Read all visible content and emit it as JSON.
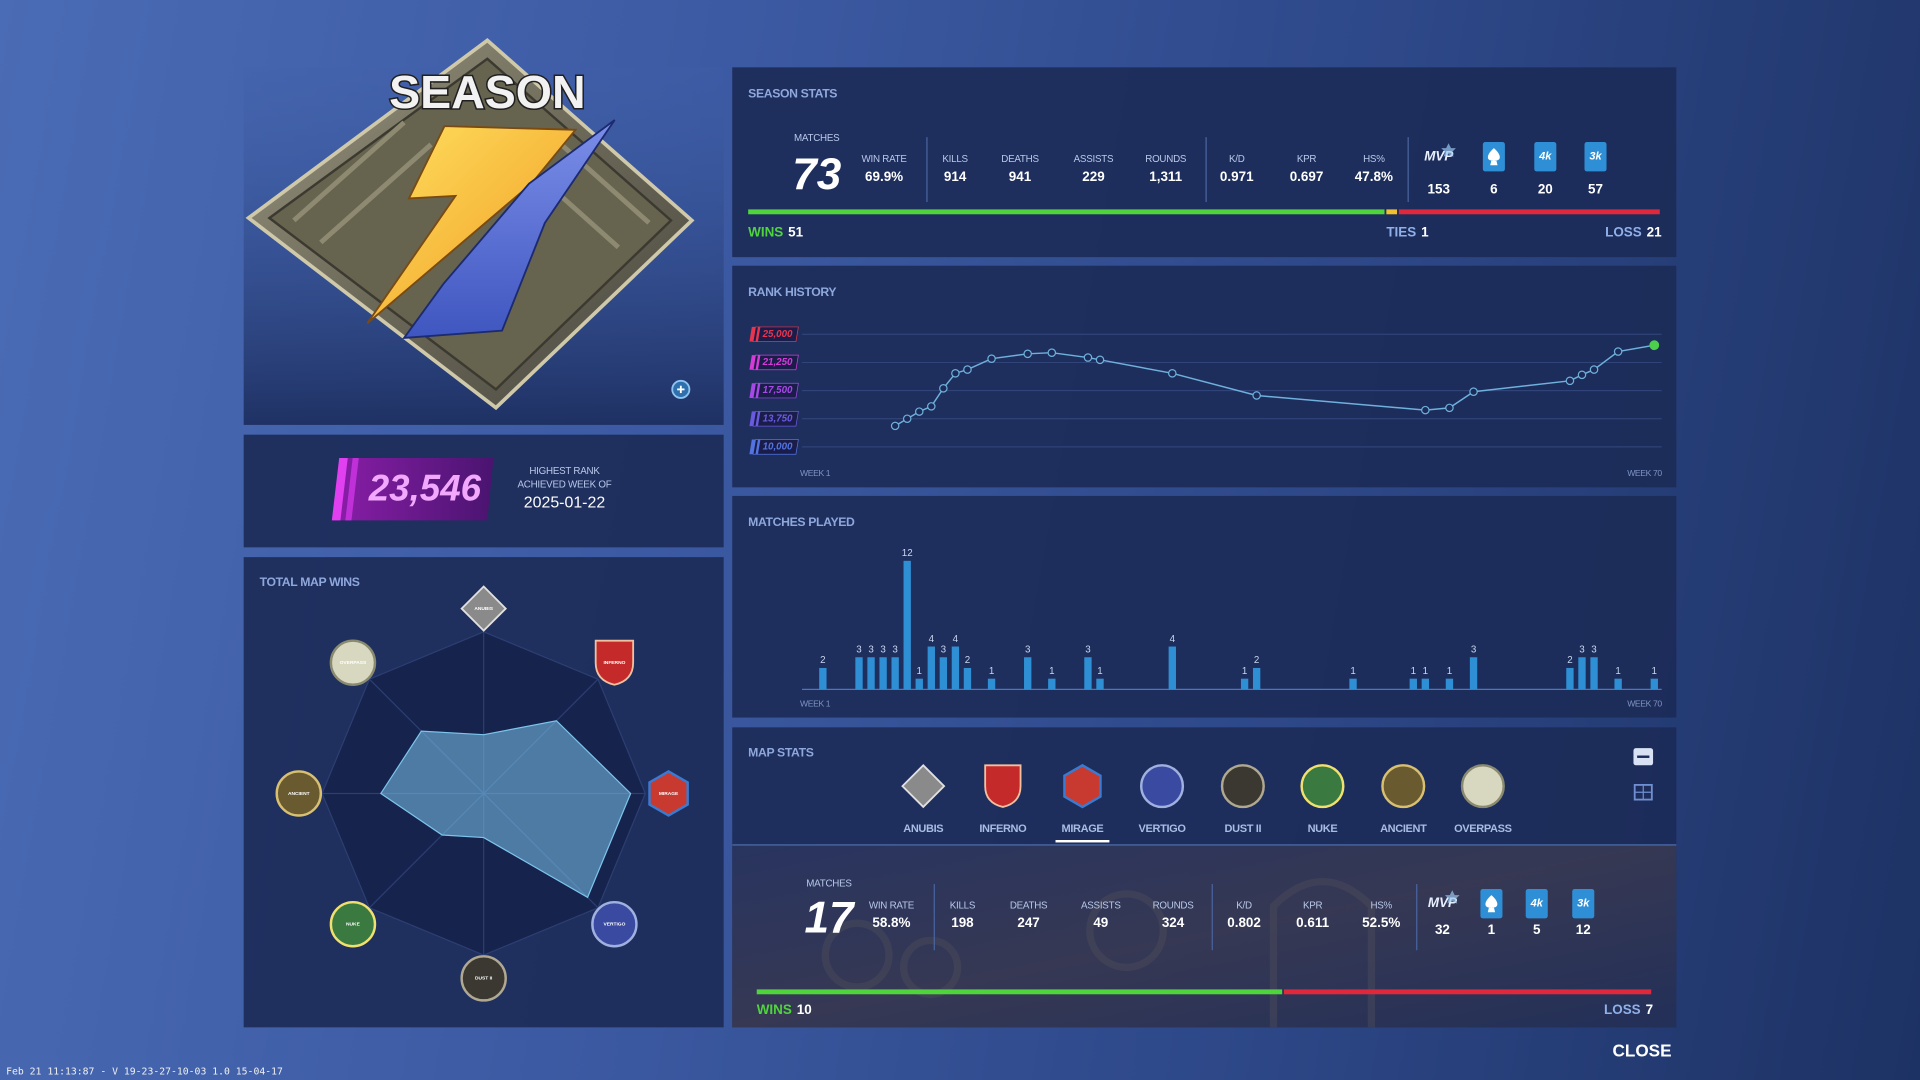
{
  "season_badge": {
    "title": "SEASON"
  },
  "highest_rank": {
    "value": "23,546",
    "caption": [
      "HIGHEST RANK",
      "ACHIEVED WEEK OF"
    ],
    "date": "2025-01-22"
  },
  "season_stats": {
    "title": "SEASON STATS",
    "matches": {
      "label": "MATCHES",
      "value": 73
    },
    "stats": [
      {
        "label": "WIN RATE",
        "value": "69.9%"
      },
      {
        "label": "KILLS",
        "value": "914"
      },
      {
        "label": "DEATHS",
        "value": "941"
      },
      {
        "label": "ASSISTS",
        "value": "229"
      },
      {
        "label": "ROUNDS",
        "value": "1,311"
      },
      {
        "label": "K/D",
        "value": "0.971"
      },
      {
        "label": "KPR",
        "value": "0.697"
      },
      {
        "label": "HS%",
        "value": "47.8%"
      }
    ],
    "awards": [
      {
        "label": "MVP",
        "value": 153
      },
      {
        "value": 6
      },
      {
        "label": "4k",
        "value": 20
      },
      {
        "label": "3k",
        "value": 57
      }
    ],
    "record": {
      "wins": {
        "label": "WINS",
        "value": 51,
        "color": "#4fd43c"
      },
      "ties": {
        "label": "TIES",
        "value": 1,
        "color": "#f0c030"
      },
      "losses": {
        "label": "LOSS",
        "value": 21,
        "color": "#e0283c"
      }
    }
  },
  "chart_data": [
    {
      "type": "line",
      "title": "RANK HISTORY",
      "x": [
        7,
        8,
        9,
        10,
        11,
        12,
        13,
        15,
        18,
        20,
        23,
        24,
        30,
        37,
        51,
        53,
        55,
        63,
        64,
        65,
        67,
        70
      ],
      "values": [
        12800,
        13750,
        14700,
        15400,
        17800,
        19800,
        20300,
        21750,
        22400,
        22550,
        21900,
        21600,
        19800,
        16850,
        14900,
        15200,
        17350,
        18800,
        19600,
        20300,
        22700,
        23546
      ],
      "xlim": [
        1,
        70
      ],
      "xticks": [
        {
          "value": 1,
          "label": "WEEK 1"
        },
        {
          "value": 70,
          "label": "WEEK 70"
        }
      ],
      "ylim": [
        9000,
        26500
      ],
      "yticks": [
        {
          "value": 25000,
          "label": "25,000"
        },
        {
          "value": 21250,
          "label": "21,250"
        },
        {
          "value": 17500,
          "label": "17,500"
        },
        {
          "value": 13750,
          "label": "13,750"
        },
        {
          "value": 10000,
          "label": "10,000"
        }
      ],
      "ytick_colors": [
        "#e8344e",
        "#d83ad8",
        "#a848e8",
        "#6a5ae0",
        "#5274e0"
      ],
      "color": "#6fb0dc",
      "last_point_color": "#4cd04c",
      "grid": true
    },
    {
      "type": "bar",
      "title": "MATCHES PLAYED",
      "x": [
        1,
        4,
        5,
        6,
        7,
        8,
        9,
        10,
        11,
        12,
        13,
        15,
        18,
        20,
        23,
        24,
        30,
        36,
        37,
        45,
        50,
        51,
        53,
        55,
        63,
        64,
        65,
        67,
        70
      ],
      "values": [
        2,
        3,
        3,
        3,
        3,
        12,
        1,
        4,
        3,
        4,
        2,
        1,
        3,
        1,
        3,
        1,
        4,
        1,
        2,
        1,
        1,
        1,
        1,
        3,
        2,
        3,
        3,
        1,
        1
      ],
      "xlim": [
        1,
        70
      ],
      "xticks": [
        {
          "value": 1,
          "label": "WEEK 1"
        },
        {
          "value": 70,
          "label": "WEEK 70"
        }
      ],
      "ylim": [
        0,
        12
      ],
      "color": "#2f8fd4"
    },
    {
      "type": "radar",
      "title": "TOTAL MAP WINS",
      "categories": [
        "ANUBIS",
        "INFERNO",
        "MIRAGE",
        "VERTIGO",
        "DUST II",
        "NUKE",
        "ANCIENT",
        "OVERPASS"
      ],
      "values": [
        4,
        7,
        10,
        10,
        3,
        4,
        7,
        6
      ],
      "rlim": [
        0,
        11
      ],
      "color": "#7cc4ec"
    }
  ],
  "map_stats": {
    "title": "MAP STATS",
    "maps": [
      "ANUBIS",
      "INFERNO",
      "MIRAGE",
      "VERTIGO",
      "DUST II",
      "NUKE",
      "ANCIENT",
      "OVERPASS"
    ],
    "selected": 2,
    "matches": {
      "label": "MATCHES",
      "value": 17
    },
    "stats": [
      {
        "label": "WIN RATE",
        "value": "58.8%"
      },
      {
        "label": "KILLS",
        "value": "198"
      },
      {
        "label": "DEATHS",
        "value": "247"
      },
      {
        "label": "ASSISTS",
        "value": "49"
      },
      {
        "label": "ROUNDS",
        "value": "324"
      },
      {
        "label": "K/D",
        "value": "0.802"
      },
      {
        "label": "KPR",
        "value": "0.611"
      },
      {
        "label": "HS%",
        "value": "52.5%"
      }
    ],
    "awards": [
      {
        "label": "MVP",
        "value": 32
      },
      {
        "value": 1
      },
      {
        "label": "4k",
        "value": 5
      },
      {
        "label": "3k",
        "value": 12
      }
    ],
    "record": {
      "wins": {
        "label": "WINS",
        "value": 10,
        "color": "#4fd43c"
      },
      "losses": {
        "label": "LOSS",
        "value": 7,
        "color": "#e0283c"
      }
    }
  },
  "close": "CLOSE",
  "footer": "Feb 21 11:13:87 - V 19-23-27-10-03 1.0 15-04-17"
}
